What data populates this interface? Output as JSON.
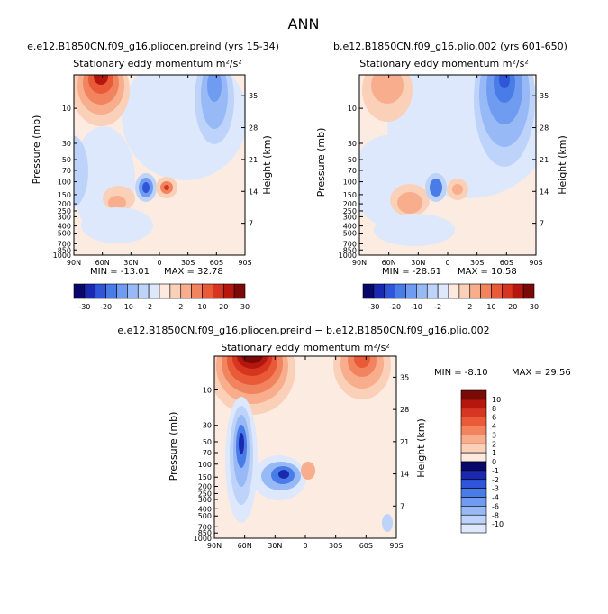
{
  "page_title": "ANN",
  "colors": {
    "negative_scale": [
      "#08086b",
      "#1a2ab0",
      "#2f55d8",
      "#4a7ce8",
      "#6f9bf0",
      "#97b9f5",
      "#bed3fa",
      "#dde8fc"
    ],
    "positive_scale": [
      "#fde9de",
      "#fbd0b8",
      "#f8ad8c",
      "#f1845f",
      "#e85a38",
      "#d63520",
      "#b5170e",
      "#7a0a05"
    ],
    "background_field": "#fcebe0"
  },
  "chart_data": [
    {
      "type": "heatmap",
      "id": "panel_a",
      "case_title": "e.e12.B1850CN.f09_g16.pliocen.preind  (yrs 15-34)",
      "variable": "Stationary eddy momentum  m²/s²",
      "xlabel_ticks": [
        "90N",
        "60N",
        "30N",
        "0",
        "30S",
        "60S",
        "90S"
      ],
      "x_values": [
        90,
        60,
        30,
        0,
        -30,
        -60,
        -90
      ],
      "ylabel": "Pressure (mb)",
      "y_ticks": [
        "10",
        "30",
        "50",
        "70",
        "100",
        "150",
        "200",
        "250",
        "300",
        "400",
        "500",
        "700",
        "850",
        "1000"
      ],
      "right_ylabel": "Height (km)",
      "right_ticks": [
        "35",
        "28",
        "21",
        "14",
        "7"
      ],
      "min_label": "MIN = -13.01",
      "max_label": "MAX = 32.78",
      "min": -13.01,
      "max": 32.78,
      "colorbar_labels": [
        "-30",
        "-20",
        "-10",
        "-2",
        "2",
        "10",
        "20",
        "30"
      ],
      "features": [
        {
          "name": "positive jet high-lat NH stratosphere",
          "lat": 62,
          "p": 5,
          "sign": "+",
          "peak": 30
        },
        {
          "name": "negative southern stratosphere",
          "lat": -60,
          "p": 8,
          "sign": "-",
          "peak": -12
        },
        {
          "name": "negative tropical dipole",
          "lat": 12,
          "p": 150,
          "sign": "-",
          "peak": -10
        },
        {
          "name": "positive tropical dipole",
          "lat": -8,
          "p": 150,
          "sign": "+",
          "peak": 12
        }
      ]
    },
    {
      "type": "heatmap",
      "id": "panel_b",
      "case_title": "b.e12.B1850CN.f09_g16.plio.002  (yrs 601-650)",
      "variable": "Stationary eddy momentum  m²/s²",
      "xlabel_ticks": [
        "90N",
        "60N",
        "30N",
        "0",
        "30S",
        "60S",
        "90S"
      ],
      "x_values": [
        90,
        60,
        30,
        0,
        -30,
        -60,
        -90
      ],
      "ylabel": "Pressure (mb)",
      "y_ticks": [
        "10",
        "30",
        "50",
        "70",
        "100",
        "150",
        "200",
        "250",
        "300",
        "400",
        "500",
        "700",
        "850",
        "1000"
      ],
      "right_ylabel": "Height (km)",
      "right_ticks": [
        "35",
        "28",
        "21",
        "14",
        "7"
      ],
      "min_label": "MIN = -28.61",
      "max_label": "MAX = 10.58",
      "min": -28.61,
      "max": 10.58,
      "colorbar_labels": [
        "-30",
        "-20",
        "-10",
        "-2",
        "2",
        "10",
        "20",
        "30"
      ],
      "features": [
        {
          "name": "weak positive NH stratosphere",
          "lat": 60,
          "p": 8,
          "sign": "+",
          "peak": 8
        },
        {
          "name": "strong negative southern stratosphere",
          "lat": -60,
          "p": 5,
          "sign": "-",
          "peak": -28
        },
        {
          "name": "negative tropical",
          "lat": 10,
          "p": 150,
          "sign": "-",
          "peak": -10
        },
        {
          "name": "positive tropical",
          "lat": -8,
          "p": 150,
          "sign": "+",
          "peak": 10
        }
      ]
    },
    {
      "type": "heatmap",
      "id": "panel_diff",
      "case_title": "e.e12.B1850CN.f09_g16.pliocen.preind  −  b.e12.B1850CN.f09_g16.plio.002",
      "variable": "Stationary eddy momentum  m²/s²",
      "xlabel_ticks": [
        "90N",
        "60N",
        "30N",
        "0",
        "30S",
        "60S",
        "90S"
      ],
      "x_values": [
        90,
        60,
        30,
        0,
        -30,
        -60,
        -90
      ],
      "ylabel": "Pressure (mb)",
      "y_ticks": [
        "10",
        "30",
        "50",
        "70",
        "100",
        "150",
        "200",
        "250",
        "300",
        "400",
        "500",
        "700",
        "850",
        "1000"
      ],
      "right_ylabel": "Height (km)",
      "right_ticks": [
        "35",
        "28",
        "21",
        "14",
        "7"
      ],
      "min_label": "MIN =   -8.10",
      "max_label": "MAX =   29.56",
      "min": -8.1,
      "max": 29.56,
      "colorbar_labels": [
        "10",
        "8",
        "6",
        "4",
        "3",
        "2",
        "1",
        "0",
        "-1",
        "-2",
        "-3",
        "-4",
        "-6",
        "-8",
        "-10"
      ],
      "features": [
        {
          "name": "strong positive NH stratosphere",
          "lat": 62,
          "p": 5,
          "sign": "+",
          "peak": 29
        },
        {
          "name": "positive southern stratosphere",
          "lat": -58,
          "p": 6,
          "sign": "+",
          "peak": 6
        },
        {
          "name": "negative NH mid-lat column",
          "lat": 58,
          "p": 150,
          "sign": "-",
          "peak": -8
        },
        {
          "name": "negative subtropical",
          "lat": 25,
          "p": 180,
          "sign": "-",
          "peak": -7
        }
      ]
    }
  ]
}
